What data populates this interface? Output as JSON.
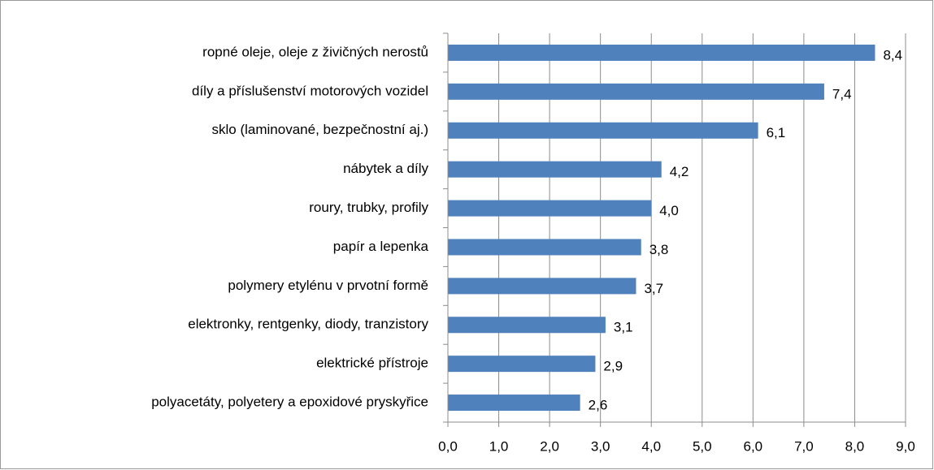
{
  "chart_data": {
    "type": "hbar",
    "categories": [
      "ropné oleje, oleje z živičných nerostů",
      "díly a příslušenství motorových vozidel",
      "sklo (laminované, bezpečnostní aj.)",
      "nábytek a díly",
      "roury, trubky, profily",
      "papír a lepenka",
      "polymery etylénu v prvotní formě",
      "elektronky, rentgenky, diody, tranzistory",
      "elektrické přístroje",
      "polyacetáty, polyetery a epoxidové pryskyřice"
    ],
    "values": [
      8.4,
      7.4,
      6.1,
      4.2,
      4.0,
      3.8,
      3.7,
      3.1,
      2.9,
      2.6
    ],
    "value_labels": [
      "8,4",
      "7,4",
      "6,1",
      "4,2",
      "4,0",
      "3,8",
      "3,7",
      "3,1",
      "2,9",
      "2,6"
    ],
    "color": "#4f81bd",
    "xlim": [
      0,
      9
    ],
    "xticks": [
      {
        "value": 0,
        "label": "0,0"
      },
      {
        "value": 1,
        "label": "1,0"
      },
      {
        "value": 2,
        "label": "2,0"
      },
      {
        "value": 3,
        "label": "3,0"
      },
      {
        "value": 4,
        "label": "4,0"
      },
      {
        "value": 5,
        "label": "5,0"
      },
      {
        "value": 6,
        "label": "6,0"
      },
      {
        "value": 7,
        "label": "7,0"
      },
      {
        "value": 8,
        "label": "8,0"
      },
      {
        "value": 9,
        "label": "9,0"
      }
    ],
    "grid": true
  }
}
